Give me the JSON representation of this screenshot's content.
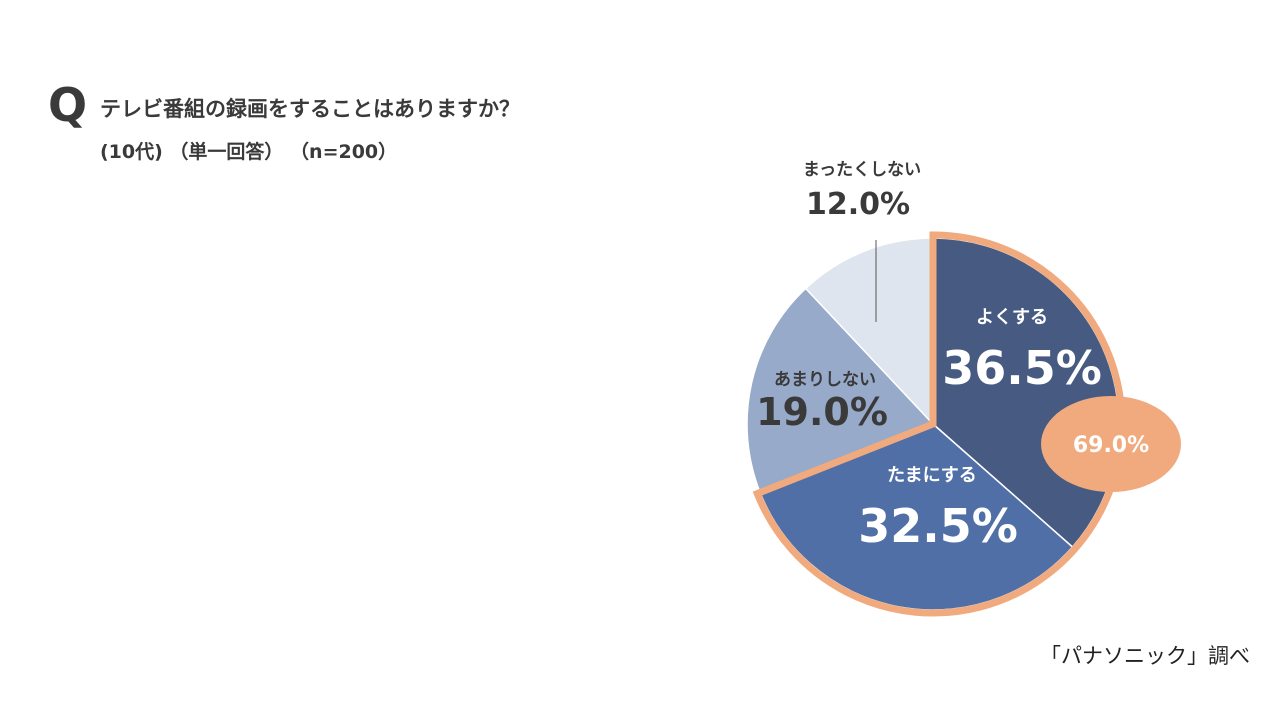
{
  "header": {
    "q_mark": "Q",
    "question": "テレビ番組の録画をすることはありますか？",
    "subtitle": "(10代) （単一回答） （n=200）"
  },
  "source": "「パナソニック」調べ",
  "chart_data": {
    "type": "pie",
    "title": "テレビ番組の録画をすることはありますか？",
    "slices": [
      {
        "label": "よくする",
        "value": 36.5,
        "display": "36.5%",
        "color": "#475a82",
        "text_color": "#ffffff"
      },
      {
        "label": "たまにする",
        "value": 32.5,
        "display": "32.5%",
        "color": "#506fa6",
        "text_color": "#ffffff"
      },
      {
        "label": "あまりしない",
        "value": 19.0,
        "display": "19.0%",
        "color": "#97aac9",
        "text_color": "#3a3a3a"
      },
      {
        "label": "まったくしない",
        "value": 12.0,
        "display": "12.0%",
        "color": "#dfe5ef",
        "text_color": "#3a3a3a"
      }
    ],
    "highlight": {
      "slices": [
        "よくする",
        "たまにする"
      ],
      "total_display": "69.0%",
      "color": "#f0aa7e",
      "text_color": "#ffffff"
    }
  }
}
